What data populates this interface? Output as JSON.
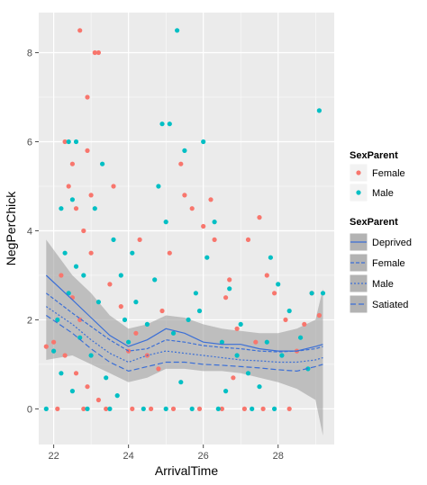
{
  "chart_data": {
    "type": "scatter",
    "xlabel": "ArrivalTime",
    "ylabel": "NegPerChick",
    "x_ticks": [
      22,
      24,
      26,
      28
    ],
    "y_ticks": [
      0,
      2,
      4,
      6,
      8
    ],
    "xlim": [
      21.6,
      29.5
    ],
    "ylim": [
      -0.8,
      8.9
    ],
    "grid": true,
    "legend_position": "right",
    "colors": {
      "Female": "#f8766d",
      "Male": "#00bfc4",
      "line": "#3b6fd6",
      "band": "#999999"
    },
    "points_legend": {
      "title": "SexParent",
      "entries": [
        "Female",
        "Male"
      ]
    },
    "smooth_legend": {
      "title": "SexParent",
      "entries": [
        "Deprived",
        "Female",
        "Male",
        "Satiated"
      ]
    },
    "series": [
      {
        "name": "Female",
        "points": [
          [
            22.3,
            6
          ],
          [
            22.5,
            5.5
          ],
          [
            22.7,
            8.5
          ],
          [
            23.1,
            8
          ],
          [
            23.2,
            8
          ],
          [
            22.9,
            7
          ],
          [
            22.4,
            5
          ],
          [
            22.6,
            4.5
          ],
          [
            22.8,
            4
          ],
          [
            23.0,
            3.5
          ],
          [
            22.2,
            3
          ],
          [
            22.5,
            2.5
          ],
          [
            22.7,
            2
          ],
          [
            21.8,
            1.4
          ],
          [
            22.0,
            1.5
          ],
          [
            22.3,
            1.2
          ],
          [
            22.6,
            0.8
          ],
          [
            22.9,
            0.5
          ],
          [
            23.2,
            0.2
          ],
          [
            23.5,
            2.8
          ],
          [
            23.8,
            2.3
          ],
          [
            24.2,
            1.7
          ],
          [
            24.5,
            1.2
          ],
          [
            24.8,
            0.9
          ],
          [
            25.1,
            3.5
          ],
          [
            25.4,
            5.5
          ],
          [
            25.7,
            4.5
          ],
          [
            26.0,
            4.1
          ],
          [
            26.3,
            3.8
          ],
          [
            26.6,
            2.5
          ],
          [
            26.9,
            1.8
          ],
          [
            27.2,
            3.8
          ],
          [
            27.5,
            4.3
          ],
          [
            27.7,
            3
          ],
          [
            27.9,
            2.6
          ],
          [
            28.2,
            2
          ],
          [
            28.5,
            1.3
          ],
          [
            28.9,
            2.6
          ],
          [
            29.1,
            2.1
          ],
          [
            22.1,
            0
          ],
          [
            22.8,
            0
          ],
          [
            23.4,
            0
          ],
          [
            24.1,
            0
          ],
          [
            24.6,
            0
          ],
          [
            25.2,
            0
          ],
          [
            25.9,
            0
          ],
          [
            26.5,
            0
          ],
          [
            27.1,
            0
          ],
          [
            27.6,
            0
          ],
          [
            28.3,
            0
          ],
          [
            23.6,
            5
          ],
          [
            24.3,
            3.8
          ],
          [
            25.5,
            4.8
          ],
          [
            26.2,
            4.7
          ],
          [
            26.7,
            2.9
          ],
          [
            27.4,
            1.5
          ],
          [
            28.7,
            1.9
          ],
          [
            24.9,
            2.2
          ],
          [
            23.0,
            4.8
          ],
          [
            22.9,
            5.8
          ],
          [
            24.0,
            1.3
          ],
          [
            26.8,
            0.7
          ]
        ]
      },
      {
        "name": "Male",
        "points": [
          [
            22.2,
            4.5
          ],
          [
            22.4,
            6
          ],
          [
            22.6,
            6
          ],
          [
            22.5,
            4.7
          ],
          [
            22.3,
            3.5
          ],
          [
            22.6,
            3.2
          ],
          [
            22.8,
            3
          ],
          [
            22.4,
            2.6
          ],
          [
            22.1,
            2
          ],
          [
            22.7,
            1.6
          ],
          [
            23.0,
            1.2
          ],
          [
            22.2,
            0.8
          ],
          [
            22.5,
            0.4
          ],
          [
            21.8,
            0
          ],
          [
            23.3,
            5.5
          ],
          [
            23.1,
            4.5
          ],
          [
            23.6,
            3.8
          ],
          [
            23.8,
            3
          ],
          [
            24.2,
            2.4
          ],
          [
            24.0,
            1.5
          ],
          [
            23.4,
            0.7
          ],
          [
            23.7,
            0.3
          ],
          [
            25.3,
            8.5
          ],
          [
            24.9,
            6.4
          ],
          [
            25.1,
            6.4
          ],
          [
            25.5,
            5.8
          ],
          [
            24.8,
            5
          ],
          [
            25.0,
            4.2
          ],
          [
            26.0,
            6
          ],
          [
            26.3,
            4.2
          ],
          [
            26.1,
            3.4
          ],
          [
            25.8,
            2.6
          ],
          [
            25.6,
            2
          ],
          [
            26.5,
            1.5
          ],
          [
            26.9,
            1.2
          ],
          [
            27.2,
            0.8
          ],
          [
            27.5,
            0.5
          ],
          [
            27.8,
            3.4
          ],
          [
            28.0,
            2.8
          ],
          [
            28.3,
            2.2
          ],
          [
            28.6,
            1.6
          ],
          [
            28.9,
            2.6
          ],
          [
            29.2,
            2.6
          ],
          [
            29.1,
            6.7
          ],
          [
            22.9,
            0
          ],
          [
            23.5,
            0
          ],
          [
            24.4,
            0
          ],
          [
            25.0,
            0
          ],
          [
            25.7,
            0
          ],
          [
            26.4,
            0
          ],
          [
            27.3,
            0
          ],
          [
            27.9,
            0
          ],
          [
            24.5,
            1.9
          ],
          [
            24.7,
            2.9
          ],
          [
            25.2,
            1.7
          ],
          [
            25.9,
            2.2
          ],
          [
            26.7,
            2.7
          ],
          [
            27.0,
            1.9
          ],
          [
            27.7,
            1.5
          ],
          [
            28.8,
            0.9
          ],
          [
            23.2,
            2.4
          ],
          [
            23.9,
            2.0
          ],
          [
            22.0,
            1.3
          ],
          [
            24.1,
            3.5
          ],
          [
            28.1,
            1.2
          ],
          [
            25.4,
            0.6
          ],
          [
            26.6,
            0.4
          ]
        ]
      }
    ],
    "smooth_lines": [
      {
        "name": "Deprived",
        "dash": "solid",
        "x": [
          21.8,
          22.5,
          23.0,
          23.5,
          24.0,
          24.5,
          25.0,
          25.5,
          26.0,
          26.5,
          27.0,
          27.5,
          28.0,
          28.5,
          29.0,
          29.2
        ],
        "y": [
          3.0,
          2.45,
          2.05,
          1.65,
          1.4,
          1.55,
          1.8,
          1.7,
          1.5,
          1.45,
          1.45,
          1.35,
          1.3,
          1.3,
          1.4,
          1.45
        ]
      },
      {
        "name": "Female",
        "dash": "4 2",
        "x": [
          21.8,
          22.5,
          23.0,
          23.5,
          24.0,
          24.5,
          25.0,
          25.5,
          26.0,
          26.5,
          27.0,
          27.5,
          28.0,
          28.5,
          29.0,
          29.2
        ],
        "y": [
          2.6,
          2.15,
          1.85,
          1.55,
          1.3,
          1.35,
          1.55,
          1.5,
          1.42,
          1.38,
          1.35,
          1.3,
          1.28,
          1.3,
          1.35,
          1.4
        ]
      },
      {
        "name": "Male",
        "dash": "2 2",
        "x": [
          21.8,
          22.5,
          23.0,
          23.5,
          24.0,
          24.5,
          25.0,
          25.5,
          26.0,
          26.5,
          27.0,
          27.5,
          28.0,
          28.5,
          29.0,
          29.2
        ],
        "y": [
          2.3,
          1.9,
          1.55,
          1.25,
          1.05,
          1.2,
          1.3,
          1.25,
          1.2,
          1.15,
          1.1,
          1.08,
          1.05,
          1.05,
          1.1,
          1.15
        ]
      },
      {
        "name": "Satiated",
        "dash": "6 3",
        "x": [
          21.8,
          22.5,
          23.0,
          23.5,
          24.0,
          24.5,
          25.0,
          25.5,
          26.0,
          26.5,
          27.0,
          27.5,
          28.0,
          28.5,
          29.0,
          29.2
        ],
        "y": [
          2.1,
          1.7,
          1.35,
          1.05,
          0.85,
          0.95,
          1.05,
          1.05,
          1.0,
          0.98,
          0.95,
          0.92,
          0.88,
          0.85,
          0.95,
          1.0
        ]
      }
    ],
    "band": {
      "x": [
        21.8,
        22.5,
        23.0,
        23.5,
        24.0,
        24.5,
        25.0,
        25.5,
        26.0,
        26.5,
        27.0,
        27.5,
        28.0,
        28.5,
        29.0,
        29.2
      ],
      "upper": [
        3.8,
        3.0,
        2.6,
        2.1,
        1.8,
        1.9,
        2.1,
        2.05,
        1.9,
        1.8,
        1.75,
        1.7,
        1.7,
        1.8,
        2.0,
        2.7
      ],
      "lower": [
        1.1,
        1.2,
        1.0,
        0.8,
        0.6,
        0.7,
        0.9,
        0.9,
        0.85,
        0.85,
        0.8,
        0.7,
        0.6,
        0.45,
        0.2,
        -0.6
      ]
    }
  }
}
